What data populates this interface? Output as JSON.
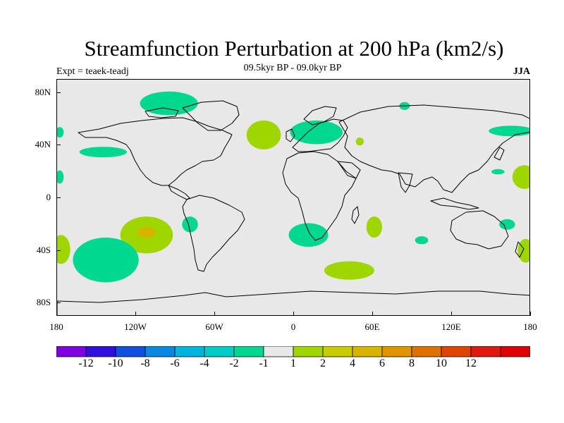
{
  "header": {
    "title": "Streamfunction Perturbation at 200 hPa (km2/s)",
    "subtitle": "09.5kyr BP - 09.0kyr BP",
    "left_label": "Expt = teaek-teadj",
    "right_label": "JJA"
  },
  "map": {
    "projection": "cylindrical equidistant",
    "lon_range": [
      -180,
      180
    ],
    "lat_range": [
      -90,
      90
    ],
    "ocean_color": "#e8e8e8",
    "coastline_color": "#000000",
    "lat_ticks": [
      {
        "lat": 80,
        "label": "80N"
      },
      {
        "lat": 40,
        "label": "40N"
      },
      {
        "lat": 0,
        "label": "0"
      },
      {
        "lat": -40,
        "label": "40S"
      },
      {
        "lat": -80,
        "label": "80S"
      }
    ],
    "lon_ticks": [
      {
        "lon": -180,
        "label": "180"
      },
      {
        "lon": -120,
        "label": "120W"
      },
      {
        "lon": -60,
        "label": "60W"
      },
      {
        "lon": 0,
        "label": "0"
      },
      {
        "lon": 60,
        "label": "60E"
      },
      {
        "lon": 120,
        "label": "120E"
      },
      {
        "lon": 180,
        "label": "180"
      }
    ],
    "anomalies": [
      {
        "lon": -95,
        "lat": 72,
        "rlon": 22,
        "rlat": 9,
        "color": "#00d890"
      },
      {
        "lon": -178,
        "lat": 50,
        "rlon": 3,
        "rlat": 4,
        "color": "#00d890"
      },
      {
        "lon": -145,
        "lat": 35,
        "rlon": 18,
        "rlat": 4,
        "color": "#00d890"
      },
      {
        "lon": -178,
        "lat": 16,
        "rlon": 3,
        "rlat": 5,
        "color": "#00d890"
      },
      {
        "lon": -23,
        "lat": 48,
        "rlon": 13,
        "rlat": 11,
        "color": "#a0d600"
      },
      {
        "lon": 17,
        "lat": 50,
        "rlon": 20,
        "rlat": 9,
        "color": "#00d890"
      },
      {
        "lon": 50,
        "lat": 43,
        "rlon": 3,
        "rlat": 3,
        "color": "#a0d600"
      },
      {
        "lon": 84,
        "lat": 70,
        "rlon": 4,
        "rlat": 3,
        "color": "#00d890"
      },
      {
        "lon": 165,
        "lat": 51,
        "rlon": 17,
        "rlat": 4,
        "color": "#00d890"
      },
      {
        "lon": 155,
        "lat": 20,
        "rlon": 5,
        "rlat": 2,
        "color": "#00d890"
      },
      {
        "lon": 175,
        "lat": 16,
        "rlon": 9,
        "rlat": 9,
        "color": "#a0d600"
      },
      {
        "lon": -112,
        "lat": -28,
        "rlon": 20,
        "rlat": 14,
        "color": "#a0d600"
      },
      {
        "lon": -112,
        "lat": -26,
        "rlon": 7,
        "rlat": 4,
        "color": "#d8b400"
      },
      {
        "lon": -79,
        "lat": -20,
        "rlon": 6,
        "rlat": 6,
        "color": "#00d890"
      },
      {
        "lon": -177,
        "lat": -39,
        "rlon": 7,
        "rlat": 11,
        "color": "#a0d600"
      },
      {
        "lon": -143,
        "lat": -47,
        "rlon": 25,
        "rlat": 17,
        "color": "#00d890"
      },
      {
        "lon": 11,
        "lat": -28,
        "rlon": 15,
        "rlat": 9,
        "color": "#00d890"
      },
      {
        "lon": 61,
        "lat": -22,
        "rlon": 6,
        "rlat": 8,
        "color": "#a0d600"
      },
      {
        "lon": 97,
        "lat": -32,
        "rlon": 5,
        "rlat": 3,
        "color": "#00d890"
      },
      {
        "lon": 42,
        "lat": -55,
        "rlon": 19,
        "rlat": 7,
        "color": "#a0d600"
      },
      {
        "lon": 162,
        "lat": -20,
        "rlon": 6,
        "rlat": 4,
        "color": "#00d890"
      },
      {
        "lon": 176,
        "lat": -40,
        "rlon": 6,
        "rlat": 9,
        "color": "#a0d600"
      }
    ]
  },
  "colorbar": {
    "colors": [
      "#7f00e0",
      "#3010e0",
      "#1050e0",
      "#0888e0",
      "#00b4e0",
      "#00ccc8",
      "#00d890",
      "#e8e8e8",
      "#a0d600",
      "#c8cc00",
      "#d8b400",
      "#e09400",
      "#e07000",
      "#e04400",
      "#e01810",
      "#e00000"
    ],
    "labels": [
      "-12",
      "-10",
      "-8",
      "-6",
      "-4",
      "-2",
      "-1",
      "1",
      "2",
      "4",
      "6",
      "8",
      "10",
      "12"
    ]
  }
}
